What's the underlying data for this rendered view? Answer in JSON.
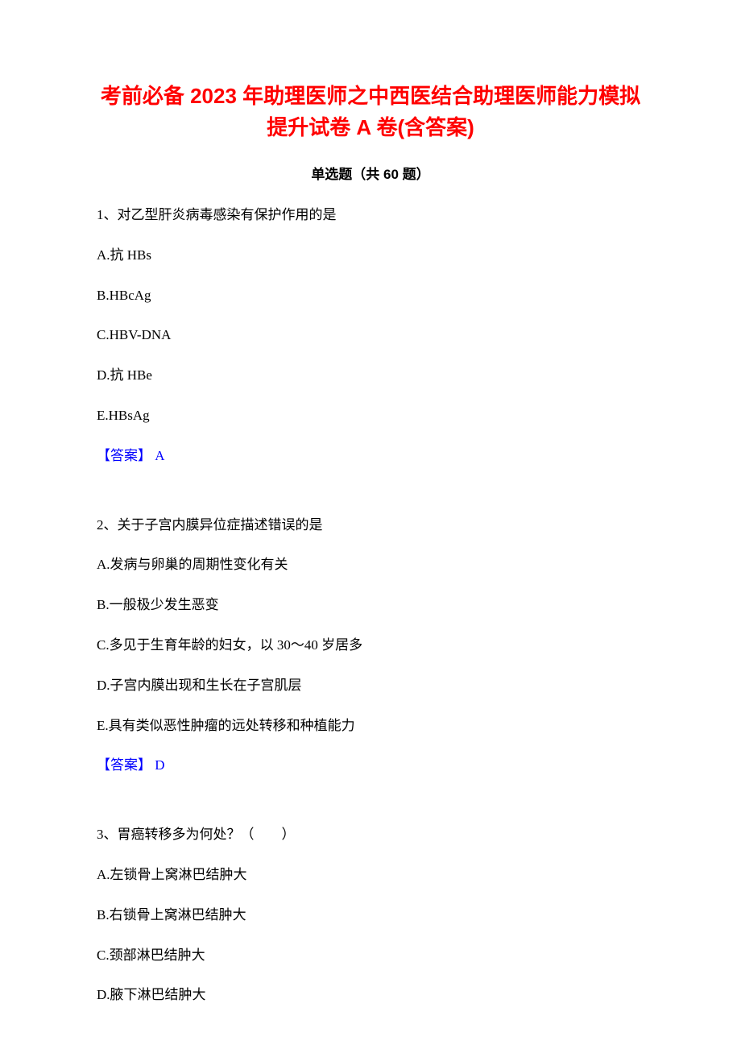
{
  "title": "考前必备 2023 年助理医师之中西医结合助理医师能力模拟提升试卷 A 卷(含答案)",
  "section_header": "单选题（共 60 题）",
  "colors": {
    "title": "#ff0000",
    "answer": "#0000ff",
    "body_text": "#000000",
    "background": "#ffffff"
  },
  "typography": {
    "title_fontsize": 26,
    "title_fontfamily": "SimHei",
    "title_fontweight": "bold",
    "section_fontsize": 17,
    "section_fontweight": "bold",
    "body_fontsize": 17,
    "body_fontfamily": "SimSun"
  },
  "questions": [
    {
      "number": "1",
      "stem": "1、对乙型肝炎病毒感染有保护作用的是",
      "options": [
        "A.抗 HBs",
        "B.HBcAg",
        "C.HBV-DNA",
        "D.抗 HBe",
        "E.HBsAg"
      ],
      "answer": "【答案】 A"
    },
    {
      "number": "2",
      "stem": "2、关于子宫内膜异位症描述错误的是",
      "options": [
        "A.发病与卵巢的周期性变化有关",
        "B.一般极少发生恶变",
        "C.多见于生育年龄的妇女，以 30～40 岁居多",
        "D.子宫内膜出现和生长在子宫肌层",
        "E.具有类似恶性肿瘤的远处转移和种植能力"
      ],
      "answer": "【答案】 D"
    },
    {
      "number": "3",
      "stem": "3、胃癌转移多为何处？（　　）",
      "options": [
        "A.左锁骨上窝淋巴结肿大",
        "B.右锁骨上窝淋巴结肿大",
        "C.颈部淋巴结肿大",
        "D.腋下淋巴结肿大"
      ],
      "answer": ""
    }
  ]
}
